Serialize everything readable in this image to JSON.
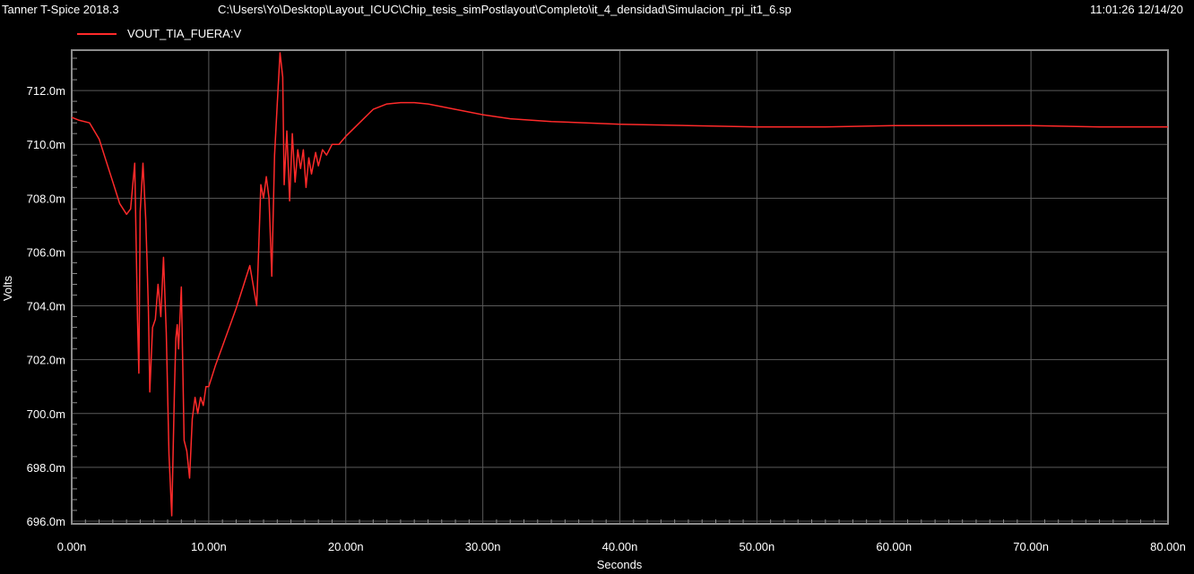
{
  "header": {
    "app": "Tanner T-Spice 2018.3",
    "file": "C:\\Users\\Yo\\Desktop\\Layout_ICUC\\Chip_tesis_simPostlayout\\Completo\\it_4_densidad\\Simulacion_rpi_it1_6.sp",
    "timestamp": "11:01:26 12/14/20"
  },
  "colors": {
    "trace": "#ff2a2a",
    "grid": "#5a5a5a",
    "frame": "#8c8c8c",
    "background": "#000000"
  },
  "chart_data": {
    "type": "line",
    "xlabel": "Seconds",
    "ylabel": "Volts",
    "xlim": [
      0,
      80
    ],
    "ylim": [
      695.9,
      713.5
    ],
    "x_unit": "ns",
    "y_unit": "mV",
    "grid": true,
    "legend_position": "top-left",
    "x_ticks": [
      "0.00n",
      "10.00n",
      "20.00n",
      "30.00n",
      "40.00n",
      "50.00n",
      "60.00n",
      "70.00n",
      "80.00n"
    ],
    "y_ticks": [
      "696.0m",
      "698.0m",
      "700.0m",
      "702.0m",
      "704.0m",
      "706.0m",
      "708.0m",
      "710.0m",
      "712.0m"
    ],
    "series": [
      {
        "name": "VOUT_TIA_FUERA:V",
        "x": [
          0,
          0.5,
          1.3,
          2,
          2.5,
          3,
          3.5,
          4,
          4.3,
          4.6,
          4.8,
          4.9,
          5.0,
          5.2,
          5.4,
          5.5,
          5.6,
          5.7,
          5.9,
          6.1,
          6.3,
          6.5,
          6.7,
          6.9,
          7.1,
          7.3,
          7.5,
          7.6,
          7.7,
          7.8,
          8.0,
          8.2,
          8.4,
          8.6,
          8.8,
          9.0,
          9.2,
          9.4,
          9.6,
          9.8,
          10.0,
          10.5,
          11,
          11.5,
          12,
          12.5,
          13,
          13.5,
          13.8,
          14,
          14.2,
          14.4,
          14.6,
          14.8,
          15.0,
          15.2,
          15.4,
          15.5,
          15.7,
          15.9,
          16.1,
          16.3,
          16.5,
          16.7,
          16.9,
          17.1,
          17.3,
          17.5,
          17.8,
          18.0,
          18.3,
          18.6,
          19.0,
          19.5,
          20,
          21,
          22,
          23,
          24,
          25,
          26,
          27,
          28,
          30,
          32,
          35,
          40,
          45,
          50,
          55,
          60,
          65,
          70,
          75,
          80
        ],
        "y": [
          711.0,
          710.9,
          710.8,
          710.2,
          709.4,
          708.6,
          707.8,
          707.4,
          707.6,
          709.3,
          703.5,
          701.5,
          707.5,
          709.3,
          707.2,
          705.6,
          703.8,
          700.8,
          703.2,
          703.5,
          704.8,
          703.6,
          705.8,
          703.0,
          698.5,
          696.2,
          701.0,
          702.8,
          703.3,
          702.4,
          704.7,
          699.0,
          698.6,
          697.6,
          699.8,
          700.6,
          700.0,
          700.6,
          700.3,
          701.0,
          701.0,
          701.8,
          702.5,
          703.2,
          703.9,
          704.7,
          705.5,
          704.0,
          708.5,
          708.0,
          708.8,
          708.0,
          705.1,
          709.6,
          711.5,
          713.4,
          712.5,
          708.5,
          710.5,
          707.9,
          710.4,
          708.6,
          709.8,
          709.1,
          709.8,
          708.4,
          709.5,
          708.9,
          709.7,
          709.2,
          709.8,
          709.6,
          710.0,
          710.0,
          710.3,
          710.8,
          711.3,
          711.5,
          711.55,
          711.55,
          711.5,
          711.4,
          711.3,
          711.1,
          710.95,
          710.85,
          710.75,
          710.7,
          710.65,
          710.65,
          710.7,
          710.7,
          710.7,
          710.65,
          710.65
        ]
      }
    ]
  }
}
